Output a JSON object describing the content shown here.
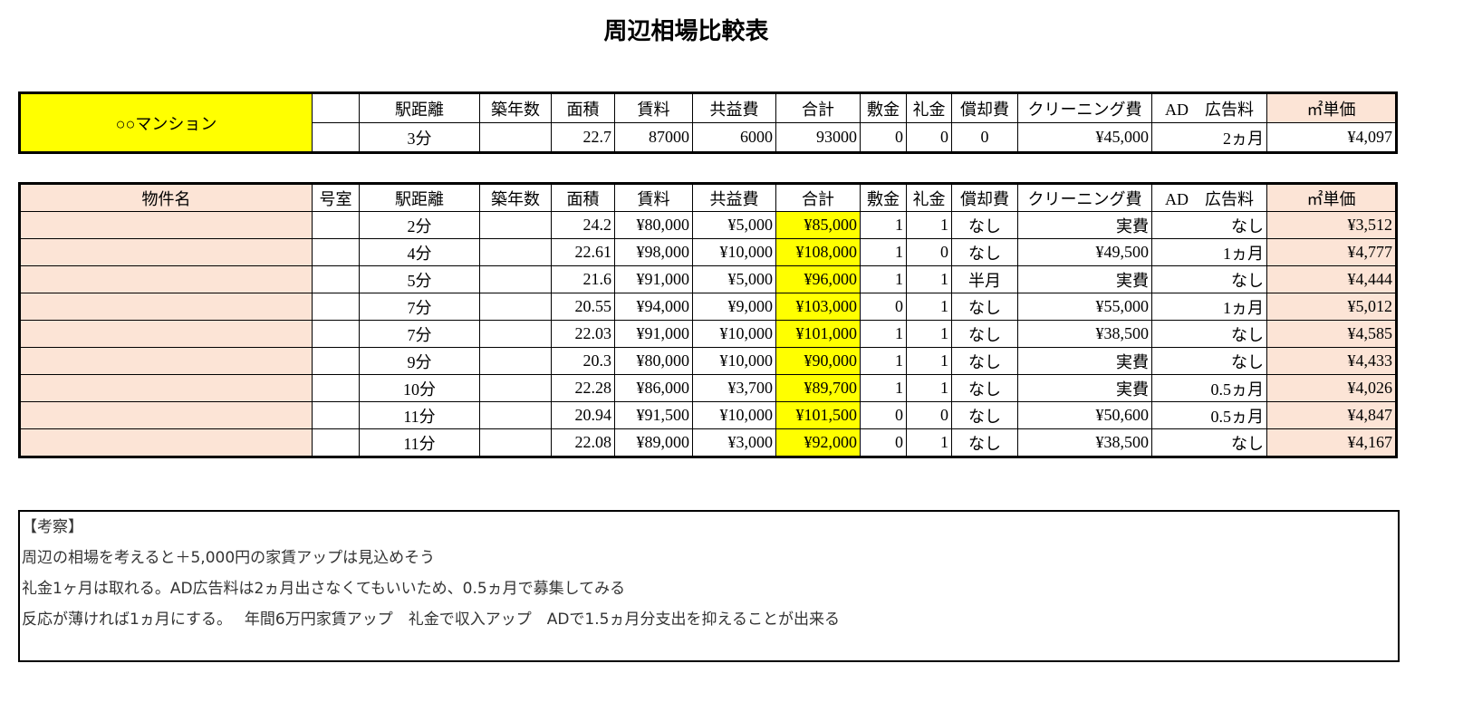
{
  "title": "周辺相場比較表",
  "columns": [
    "物件名",
    "号室",
    "駅距離",
    "築年数",
    "面積",
    "賃料",
    "共益費",
    "合計",
    "敷金",
    "礼金",
    "償却費",
    "クリーニング費",
    "AD　広告料",
    "㎡単価"
  ],
  "subject": {
    "name": "○○マンション",
    "header": [
      "",
      "駅距離",
      "築年数",
      "面積",
      "賃料",
      "共益費",
      "合計",
      "敷金",
      "礼金",
      "償却費",
      "クリーニング費",
      "AD　広告料",
      "㎡単価"
    ],
    "values": [
      "",
      "3分",
      "",
      "22.7",
      "87000",
      "6000",
      "93000",
      "0",
      "0",
      "0",
      "¥45,000",
      "2ヵ月",
      "¥4,097"
    ]
  },
  "rows": [
    [
      "",
      "",
      "2分",
      "",
      "24.2",
      "¥80,000",
      "¥5,000",
      "¥85,000",
      "1",
      "1",
      "なし",
      "実費",
      "なし",
      "¥3,512"
    ],
    [
      "",
      "",
      "4分",
      "",
      "22.61",
      "¥98,000",
      "¥10,000",
      "¥108,000",
      "1",
      "0",
      "なし",
      "¥49,500",
      "1ヵ月",
      "¥4,777"
    ],
    [
      "",
      "",
      "5分",
      "",
      "21.6",
      "¥91,000",
      "¥5,000",
      "¥96,000",
      "1",
      "1",
      "半月",
      "実費",
      "なし",
      "¥4,444"
    ],
    [
      "",
      "",
      "7分",
      "",
      "20.55",
      "¥94,000",
      "¥9,000",
      "¥103,000",
      "0",
      "1",
      "なし",
      "¥55,000",
      "1ヵ月",
      "¥5,012"
    ],
    [
      "",
      "",
      "7分",
      "",
      "22.03",
      "¥91,000",
      "¥10,000",
      "¥101,000",
      "1",
      "1",
      "なし",
      "¥38,500",
      "なし",
      "¥4,585"
    ],
    [
      "",
      "",
      "9分",
      "",
      "20.3",
      "¥80,000",
      "¥10,000",
      "¥90,000",
      "1",
      "1",
      "なし",
      "実費",
      "なし",
      "¥4,433"
    ],
    [
      "",
      "",
      "10分",
      "",
      "22.28",
      "¥86,000",
      "¥3,700",
      "¥89,700",
      "1",
      "1",
      "なし",
      "実費",
      "0.5ヵ月",
      "¥4,026"
    ],
    [
      "",
      "",
      "11分",
      "",
      "20.94",
      "¥91,500",
      "¥10,000",
      "¥101,500",
      "0",
      "0",
      "なし",
      "¥50,600",
      "0.5ヵ月",
      "¥4,847"
    ],
    [
      "",
      "",
      "11分",
      "",
      "22.08",
      "¥89,000",
      "¥3,000",
      "¥92,000",
      "0",
      "1",
      "なし",
      "¥38,500",
      "なし",
      "¥4,167"
    ]
  ],
  "notes": [
    "【考察】",
    "周辺の相場を考えると＋5,000円の家賃アップは見込めそう",
    "礼金1ヶ月は取れる。AD広告料は2ヵ月出さなくてもいいため、0.5ヵ月で募集してみる",
    "反応が薄ければ1ヵ月にする。　 年間6万円家賃アップ　礼金で収入アップ　ADで1.5ヵ月分支出を抑えることが出来る"
  ],
  "colors": {
    "highlight": "#ffff00",
    "header_fill": "#fce4d6"
  }
}
